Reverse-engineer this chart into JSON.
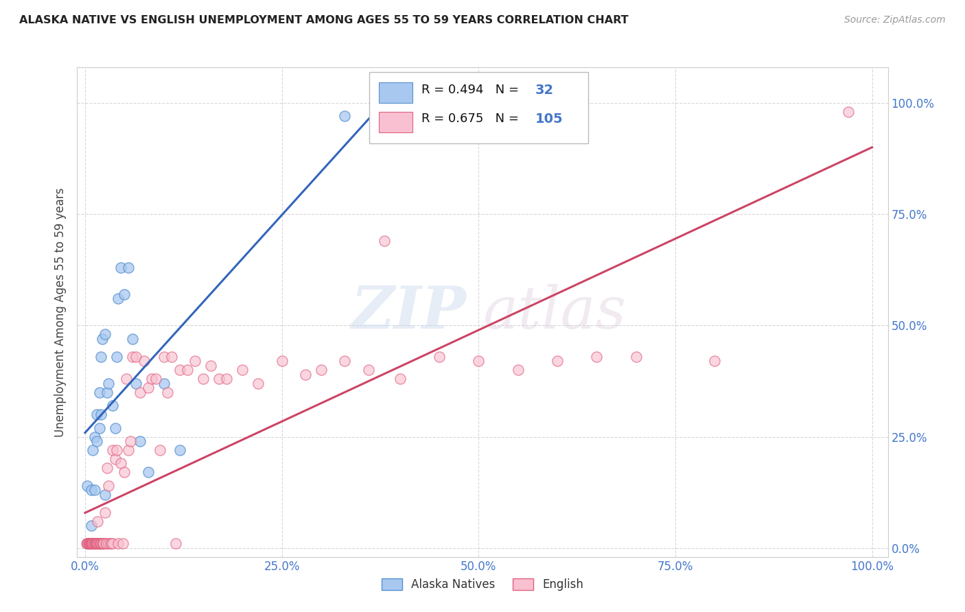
{
  "title": "ALASKA NATIVE VS ENGLISH UNEMPLOYMENT AMONG AGES 55 TO 59 YEARS CORRELATION CHART",
  "source": "Source: ZipAtlas.com",
  "ylabel": "Unemployment Among Ages 55 to 59 years",
  "xlim": [
    -0.01,
    1.02
  ],
  "ylim": [
    -0.02,
    1.08
  ],
  "xticks": [
    0.0,
    0.25,
    0.5,
    0.75,
    1.0
  ],
  "yticks": [
    0.0,
    0.25,
    0.5,
    0.75,
    1.0
  ],
  "xtick_labels": [
    "0.0%",
    "25.0%",
    "50.0%",
    "75.0%",
    "100.0%"
  ],
  "ytick_labels": [
    "0.0%",
    "25.0%",
    "50.0%",
    "75.0%",
    "100.0%"
  ],
  "alaska_fill_color": "#a8c8f0",
  "alaska_edge_color": "#5590d0",
  "english_fill_color": "#f8c0d0",
  "english_edge_color": "#e06080",
  "alaska_line_color": "#3366bb",
  "english_line_color": "#cc4466",
  "alaska_R": 0.494,
  "alaska_N": 32,
  "english_R": 0.675,
  "english_N": 105,
  "watermark_zip": "ZIP",
  "watermark_atlas": "atlas",
  "alaska_points_x": [
    0.003,
    0.008,
    0.008,
    0.01,
    0.012,
    0.012,
    0.015,
    0.015,
    0.018,
    0.018,
    0.02,
    0.02,
    0.022,
    0.025,
    0.025,
    0.028,
    0.03,
    0.035,
    0.038,
    0.04,
    0.042,
    0.045,
    0.05,
    0.055,
    0.06,
    0.065,
    0.07,
    0.08,
    0.1,
    0.12,
    0.33,
    0.37
  ],
  "alaska_points_y": [
    0.14,
    0.05,
    0.13,
    0.22,
    0.13,
    0.25,
    0.24,
    0.3,
    0.27,
    0.35,
    0.3,
    0.43,
    0.47,
    0.12,
    0.48,
    0.35,
    0.37,
    0.32,
    0.27,
    0.43,
    0.56,
    0.63,
    0.57,
    0.63,
    0.47,
    0.37,
    0.24,
    0.17,
    0.37,
    0.22,
    0.97,
    0.97
  ],
  "english_points_x": [
    0.002,
    0.003,
    0.003,
    0.004,
    0.004,
    0.005,
    0.005,
    0.005,
    0.006,
    0.006,
    0.006,
    0.007,
    0.007,
    0.008,
    0.008,
    0.008,
    0.008,
    0.009,
    0.009,
    0.009,
    0.01,
    0.01,
    0.01,
    0.01,
    0.01,
    0.011,
    0.011,
    0.012,
    0.012,
    0.013,
    0.013,
    0.014,
    0.014,
    0.015,
    0.015,
    0.015,
    0.016,
    0.016,
    0.017,
    0.017,
    0.018,
    0.018,
    0.019,
    0.02,
    0.02,
    0.02,
    0.022,
    0.022,
    0.023,
    0.024,
    0.025,
    0.026,
    0.027,
    0.028,
    0.03,
    0.03,
    0.032,
    0.033,
    0.035,
    0.035,
    0.038,
    0.04,
    0.042,
    0.045,
    0.048,
    0.05,
    0.052,
    0.055,
    0.058,
    0.06,
    0.065,
    0.07,
    0.075,
    0.08,
    0.085,
    0.09,
    0.095,
    0.1,
    0.105,
    0.11,
    0.115,
    0.12,
    0.13,
    0.14,
    0.15,
    0.16,
    0.17,
    0.18,
    0.2,
    0.22,
    0.25,
    0.28,
    0.3,
    0.33,
    0.36,
    0.38,
    0.4,
    0.45,
    0.5,
    0.55,
    0.6,
    0.65,
    0.7,
    0.8,
    0.97
  ],
  "english_points_y": [
    0.01,
    0.01,
    0.01,
    0.01,
    0.01,
    0.01,
    0.01,
    0.01,
    0.01,
    0.01,
    0.01,
    0.01,
    0.01,
    0.01,
    0.01,
    0.01,
    0.01,
    0.01,
    0.01,
    0.01,
    0.01,
    0.01,
    0.01,
    0.01,
    0.01,
    0.01,
    0.01,
    0.01,
    0.01,
    0.01,
    0.01,
    0.01,
    0.01,
    0.01,
    0.01,
    0.01,
    0.01,
    0.06,
    0.01,
    0.01,
    0.01,
    0.01,
    0.01,
    0.01,
    0.01,
    0.01,
    0.01,
    0.01,
    0.01,
    0.01,
    0.08,
    0.01,
    0.01,
    0.18,
    0.01,
    0.14,
    0.01,
    0.01,
    0.22,
    0.01,
    0.2,
    0.22,
    0.01,
    0.19,
    0.01,
    0.17,
    0.38,
    0.22,
    0.24,
    0.43,
    0.43,
    0.35,
    0.42,
    0.36,
    0.38,
    0.38,
    0.22,
    0.43,
    0.35,
    0.43,
    0.01,
    0.4,
    0.4,
    0.42,
    0.38,
    0.41,
    0.38,
    0.38,
    0.4,
    0.37,
    0.42,
    0.39,
    0.4,
    0.42,
    0.4,
    0.69,
    0.38,
    0.43,
    0.42,
    0.4,
    0.42,
    0.43,
    0.43,
    0.42,
    0.98
  ]
}
